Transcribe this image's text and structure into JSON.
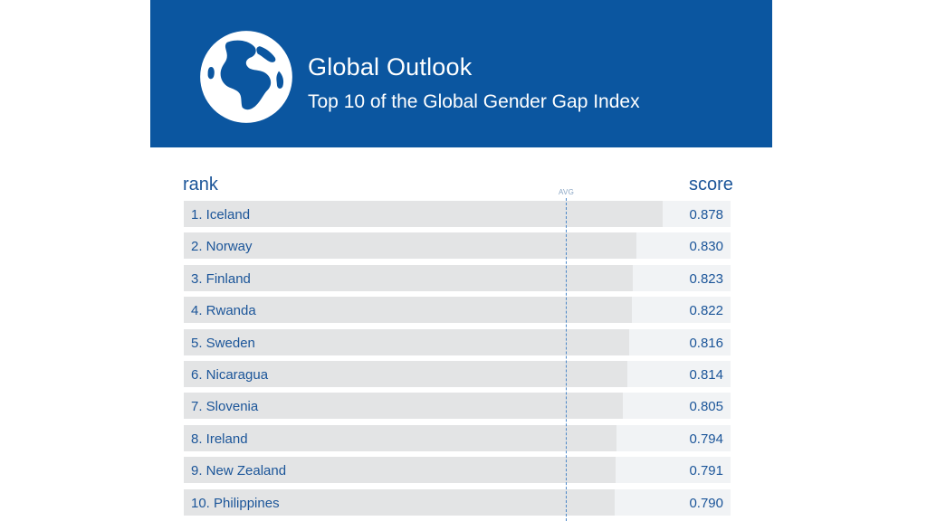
{
  "header": {
    "title": "Global Outlook",
    "subtitle": "Top 10 of the Global Gender Gap Index"
  },
  "colors": {
    "banner": "#0b56a0",
    "text": "#1b5599",
    "bar": "#e3e4e5",
    "track": "#f1f3f5",
    "avg_line": "#4a86c7"
  },
  "chart_data": {
    "type": "bar",
    "orientation": "horizontal",
    "rank_header": "rank",
    "score_header": "score",
    "avg_label": "AVG",
    "categories": [
      "1. Iceland",
      "2. Norway",
      "3. Finland",
      "4. Rwanda",
      "5. Sweden",
      "6. Nicaragua",
      "7. Slovenia",
      "8. Ireland",
      "9. New Zealand",
      "10. Philippines"
    ],
    "values": [
      0.878,
      0.83,
      0.823,
      0.822,
      0.816,
      0.814,
      0.805,
      0.794,
      0.791,
      0.79
    ],
    "value_labels": [
      "0.878",
      "0.830",
      "0.823",
      "0.822",
      "0.816",
      "0.814",
      "0.805",
      "0.794",
      "0.791",
      "0.790"
    ],
    "xlim": [
      0,
      1
    ]
  }
}
